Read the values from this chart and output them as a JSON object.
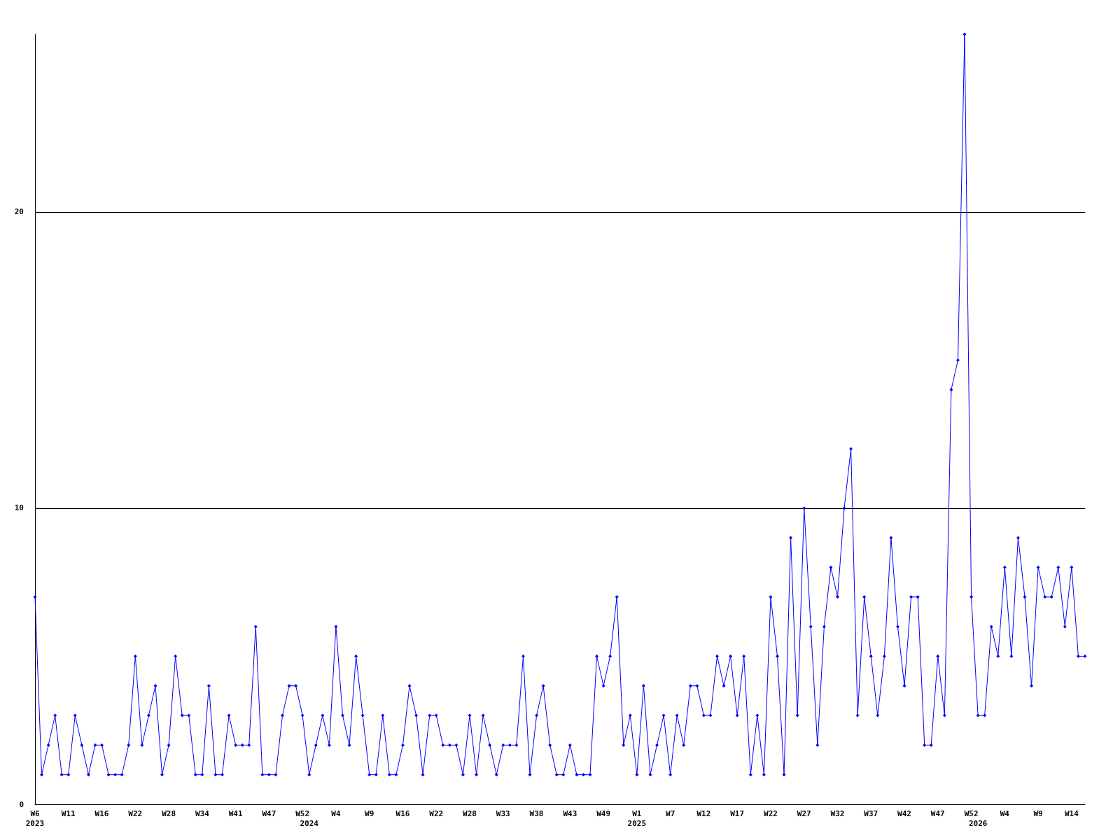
{
  "chart_data": {
    "type": "line",
    "categories": [
      "W6\n2023",
      null,
      null,
      null,
      null,
      "W11",
      null,
      null,
      null,
      null,
      "W16",
      null,
      null,
      null,
      null,
      "W22",
      null,
      null,
      null,
      null,
      "W28",
      null,
      null,
      null,
      null,
      "W34",
      null,
      null,
      null,
      null,
      "W41",
      null,
      null,
      null,
      null,
      "W47",
      null,
      null,
      null,
      null,
      "W52",
      "\n2024",
      null,
      null,
      null,
      "W4",
      null,
      null,
      null,
      null,
      "W9",
      null,
      null,
      null,
      null,
      "W16",
      null,
      null,
      null,
      null,
      "W22",
      null,
      null,
      null,
      null,
      "W28",
      null,
      null,
      null,
      null,
      "W33",
      null,
      null,
      null,
      null,
      "W38",
      null,
      null,
      null,
      null,
      "W43",
      null,
      null,
      null,
      null,
      "W49",
      null,
      null,
      null,
      null,
      "W1\n2025",
      null,
      null,
      null,
      null,
      "W7",
      null,
      null,
      null,
      null,
      "W12",
      null,
      null,
      null,
      null,
      "W17",
      null,
      null,
      null,
      null,
      "W22",
      null,
      null,
      null,
      null,
      "W27",
      null,
      null,
      null,
      null,
      "W32",
      null,
      null,
      null,
      null,
      "W37",
      null,
      null,
      null,
      null,
      "W42",
      null,
      null,
      null,
      null,
      "W47",
      null,
      null,
      null,
      null,
      "W52",
      "\n2026",
      null,
      null,
      null,
      "W4",
      null,
      null,
      null,
      null,
      "W9",
      null,
      null,
      null,
      null,
      "W14",
      null,
      null
    ],
    "series": [
      {
        "color": "#0000ff",
        "values": [
          7,
          1,
          2,
          3,
          1,
          1,
          3,
          2,
          1,
          2,
          2,
          1,
          1,
          1,
          2,
          5,
          2,
          3,
          4,
          1,
          2,
          5,
          3,
          3,
          1,
          1,
          4,
          1,
          1,
          3,
          2,
          2,
          2,
          6,
          1,
          1,
          1,
          3,
          4,
          4,
          3,
          1,
          2,
          3,
          2,
          6,
          3,
          2,
          5,
          3,
          1,
          1,
          3,
          1,
          1,
          2,
          4,
          3,
          1,
          3,
          3,
          2,
          2,
          2,
          1,
          3,
          1,
          3,
          2,
          1,
          2,
          2,
          2,
          5,
          1,
          3,
          4,
          2,
          1,
          1,
          2,
          1,
          1,
          1,
          5,
          4,
          5,
          7,
          2,
          3,
          1,
          4,
          1,
          2,
          3,
          1,
          3,
          2,
          4,
          4,
          3,
          3,
          5,
          4,
          5,
          3,
          5,
          1,
          3,
          1,
          7,
          5,
          1,
          9,
          3,
          10,
          6,
          2,
          6,
          8,
          7,
          10,
          12,
          3,
          7,
          5,
          3,
          5,
          9,
          6,
          4,
          7,
          7,
          2,
          2,
          5,
          3,
          14,
          15,
          26,
          7,
          3,
          3,
          6,
          5,
          8,
          5,
          9,
          7,
          4,
          8,
          7,
          7,
          8,
          6,
          8,
          5,
          5
        ]
      }
    ],
    "ylim": [
      0,
      26
    ],
    "yticks": [
      0,
      10,
      20
    ],
    "grid": "y",
    "marker": "diamond",
    "line_style": "solid"
  }
}
